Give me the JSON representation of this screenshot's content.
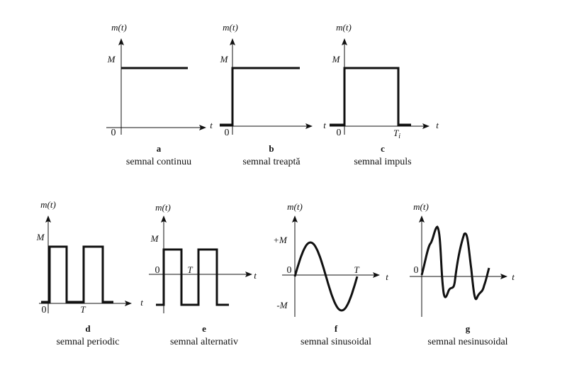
{
  "panels": [
    {
      "letter": "a",
      "caption": "semnal continuu",
      "y_axis": "m(t)",
      "x_axis": "t",
      "level": "M",
      "origin": "0"
    },
    {
      "letter": "b",
      "caption": "semnal treaptă",
      "y_axis": "m(t)",
      "x_axis": "t",
      "level": "M",
      "origin": "0"
    },
    {
      "letter": "c",
      "caption": "semnal impuls",
      "y_axis": "m(t)",
      "x_axis": "t",
      "level": "M",
      "origin": "0",
      "time_mark": "T",
      "time_mark_sub": "i"
    },
    {
      "letter": "d",
      "caption": "semnal periodic",
      "y_axis": "m(t)",
      "x_axis": "t",
      "level": "M",
      "origin": "0",
      "time_mark": "T"
    },
    {
      "letter": "e",
      "caption": "semnal alternativ",
      "y_axis": "m(t)",
      "x_axis": "t",
      "level": "M",
      "origin": "0",
      "time_mark": "T"
    },
    {
      "letter": "f",
      "caption": "semnal sinusoidal",
      "y_axis": "m(t)",
      "x_axis": "t",
      "level": "+M",
      "level_low": "-M",
      "origin": "0",
      "time_mark": "T"
    },
    {
      "letter": "g",
      "caption": "semnal nesinusoidal",
      "y_axis": "m(t)",
      "x_axis": "t",
      "origin": "0"
    }
  ]
}
